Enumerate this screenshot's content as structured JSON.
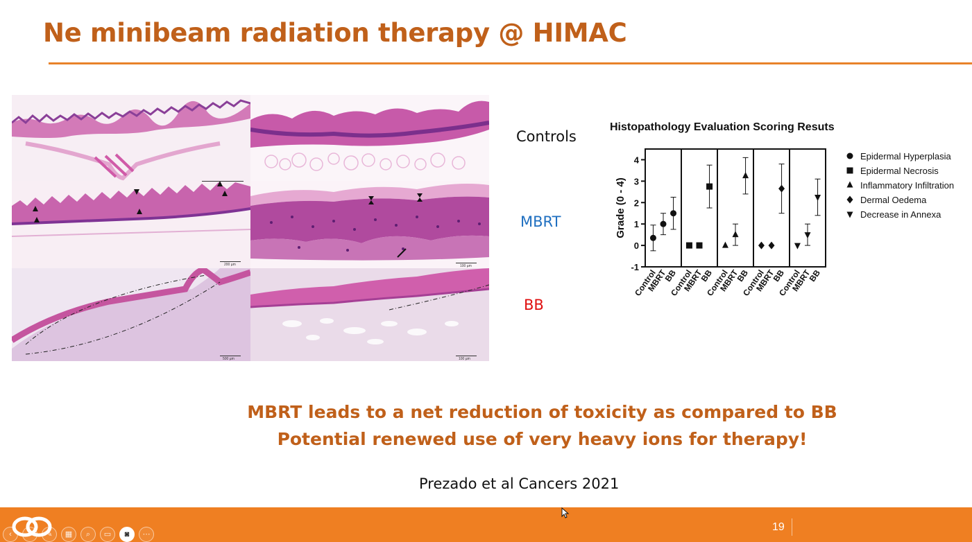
{
  "slide": {
    "title": "Ne minibeam radiation therapy @ HIMAC",
    "row_labels": {
      "controls": "Controls",
      "mbrt": "MBRT",
      "bb": "BB"
    },
    "conclusions": [
      "MBRT leads to a net reduction of toxicity as compared to BB",
      "Potential renewed use of very heavy ions for therapy!"
    ],
    "citation": "Prezado et al Cancers 2021",
    "page_number": "19"
  },
  "colors": {
    "title": "#c0601a",
    "accent_orange": "#ef7f22",
    "mbrt_label": "#1f6fc0",
    "bb_label": "#e01010",
    "tissue_pink": "#d86fb4",
    "tissue_purple": "#8a3f98"
  },
  "histology": {
    "panels": [
      {
        "id": "controls-low",
        "scale_bar": ""
      },
      {
        "id": "controls-high",
        "scale_bar": ""
      },
      {
        "id": "mbrt-low",
        "scale_bar": "200 µm"
      },
      {
        "id": "mbrt-high",
        "scale_bar": "100 µm"
      },
      {
        "id": "bb-low",
        "scale_bar": "500 µm"
      },
      {
        "id": "bb-high",
        "scale_bar": "100 µm"
      }
    ]
  },
  "toolbar": {
    "icons": [
      "arrow-left-icon",
      "arrow-right-icon",
      "pen-icon",
      "slides-grid-icon",
      "zoom-icon",
      "subtitles-icon",
      "camera-icon",
      "more-icon"
    ]
  },
  "chart_data": {
    "type": "scatter",
    "title": "Histopathology Evaluation Scoring Resuts",
    "ylabel": "Grade (0 - 4)",
    "xlabel": "",
    "ylim": [
      -1,
      4.5
    ],
    "yticks": [
      -1,
      0,
      1,
      2,
      3,
      4
    ],
    "grid": false,
    "legend_position": "right",
    "groups": [
      {
        "series": "Epidermal Hyperplasia",
        "marker": "circle",
        "categories": [
          "Control",
          "MBRT",
          "BB"
        ],
        "values": [
          0.35,
          1.0,
          1.5
        ],
        "err_low": [
          -0.25,
          0.5,
          0.75
        ],
        "err_high": [
          0.95,
          1.5,
          2.25
        ]
      },
      {
        "series": "Epidermal Necrosis",
        "marker": "square",
        "categories": [
          "Control",
          "MBRT",
          "BB"
        ],
        "values": [
          0,
          0,
          2.75
        ],
        "err_low": [
          null,
          null,
          1.75
        ],
        "err_high": [
          null,
          null,
          3.75
        ]
      },
      {
        "series": "Inflammatory Infiltration",
        "marker": "triangle-up",
        "categories": [
          "Control",
          "MBRT",
          "BB"
        ],
        "values": [
          0,
          0.5,
          3.25
        ],
        "err_low": [
          null,
          0,
          2.4
        ],
        "err_high": [
          null,
          1.0,
          4.1
        ]
      },
      {
        "series": "Dermal Oedema",
        "marker": "diamond",
        "categories": [
          "Control",
          "MBRT",
          "BB"
        ],
        "values": [
          0,
          0,
          2.65
        ],
        "err_low": [
          null,
          null,
          1.5
        ],
        "err_high": [
          null,
          null,
          3.8
        ]
      },
      {
        "series": "Decrease in Annexa",
        "marker": "triangle-down",
        "categories": [
          "Control",
          "MBRT",
          "BB"
        ],
        "values": [
          0,
          0.5,
          2.25
        ],
        "err_low": [
          null,
          0,
          1.4
        ],
        "err_high": [
          null,
          1.0,
          3.1
        ]
      }
    ]
  }
}
